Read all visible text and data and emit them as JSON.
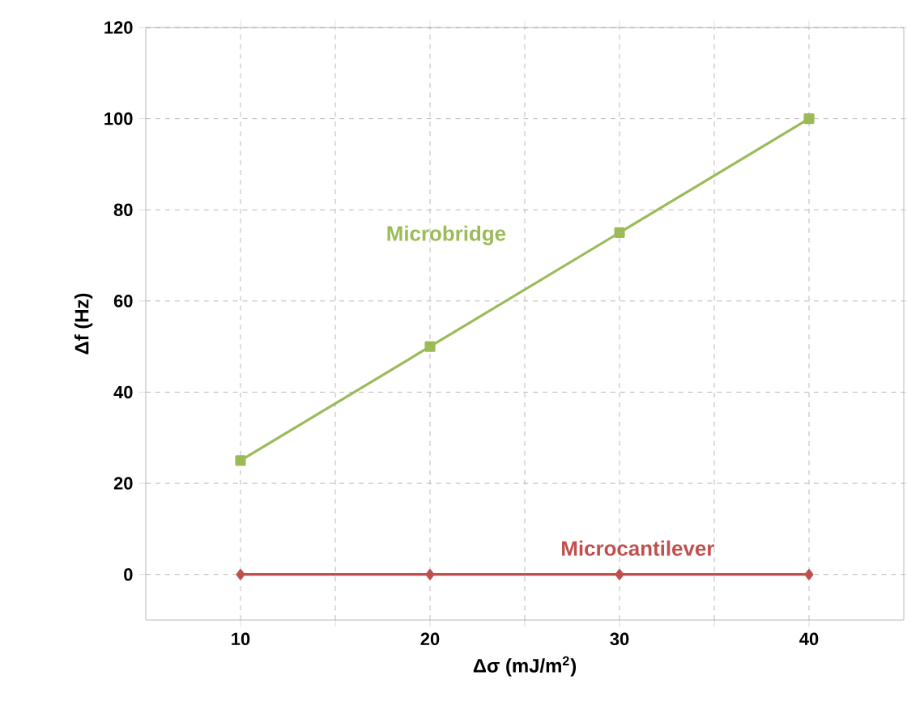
{
  "chart_data": {
    "type": "line",
    "xlabel": "Δσ (mJ/m$^{2}$)",
    "ylabel": "Δf (Hz)",
    "x": [
      10,
      20,
      30,
      40
    ],
    "series": [
      {
        "name": "Microbridge",
        "color": "#9bbb59",
        "values": [
          25,
          50,
          75,
          100
        ],
        "marker": "square"
      },
      {
        "name": "Microcantilever",
        "color": "#c0504d",
        "values": [
          0,
          0,
          0,
          0
        ],
        "marker": "diamond"
      }
    ],
    "xlim": [
      5,
      45
    ],
    "xticks": [
      10,
      {
        "value": 15,
        "label": null
      },
      20,
      {
        "value": 25,
        "label": null
      },
      30,
      {
        "value": 35,
        "label": null
      },
      40
    ],
    "ylim": [
      -10,
      120
    ],
    "yticks": [
      0,
      20,
      40,
      60,
      80,
      100,
      120
    ],
    "grid": true,
    "legend": false,
    "line_style": "solid"
  }
}
